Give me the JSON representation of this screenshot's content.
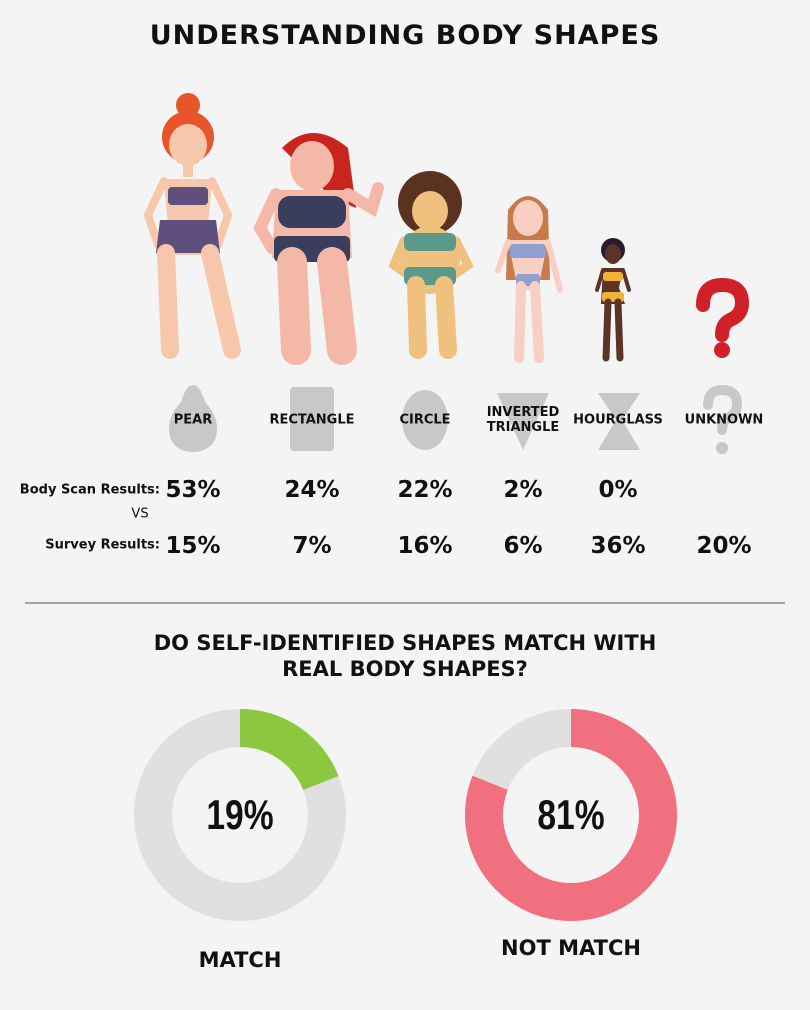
{
  "title": "UNDERSTANDING BODY SHAPES",
  "row_labels": {
    "body_scan": "Body Scan Results:",
    "vs": "VS",
    "survey": "Survey Results:"
  },
  "shapes": [
    {
      "name": "PEAR",
      "body_scan": "53%",
      "survey": "15%"
    },
    {
      "name": "RECTANGLE",
      "body_scan": "24%",
      "survey": "7%"
    },
    {
      "name": "CIRCLE",
      "body_scan": "22%",
      "survey": "16%"
    },
    {
      "name": "INVERTED TRIANGLE",
      "body_scan": "2%",
      "survey": "6%"
    },
    {
      "name": "HOURGLASS",
      "body_scan": "0%",
      "survey": "36%"
    },
    {
      "name": "UNKNOWN",
      "survey": "20%"
    }
  ],
  "question": "DO SELF-IDENTIFIED SHAPES MATCH WITH REAL BODY SHAPES?",
  "donuts": [
    {
      "value": 19,
      "label": "19%",
      "caption": "MATCH",
      "color": "#8dc63f"
    },
    {
      "value": 81,
      "label": "81%",
      "caption": "NOT MATCH",
      "color": "#f07080"
    }
  ]
}
